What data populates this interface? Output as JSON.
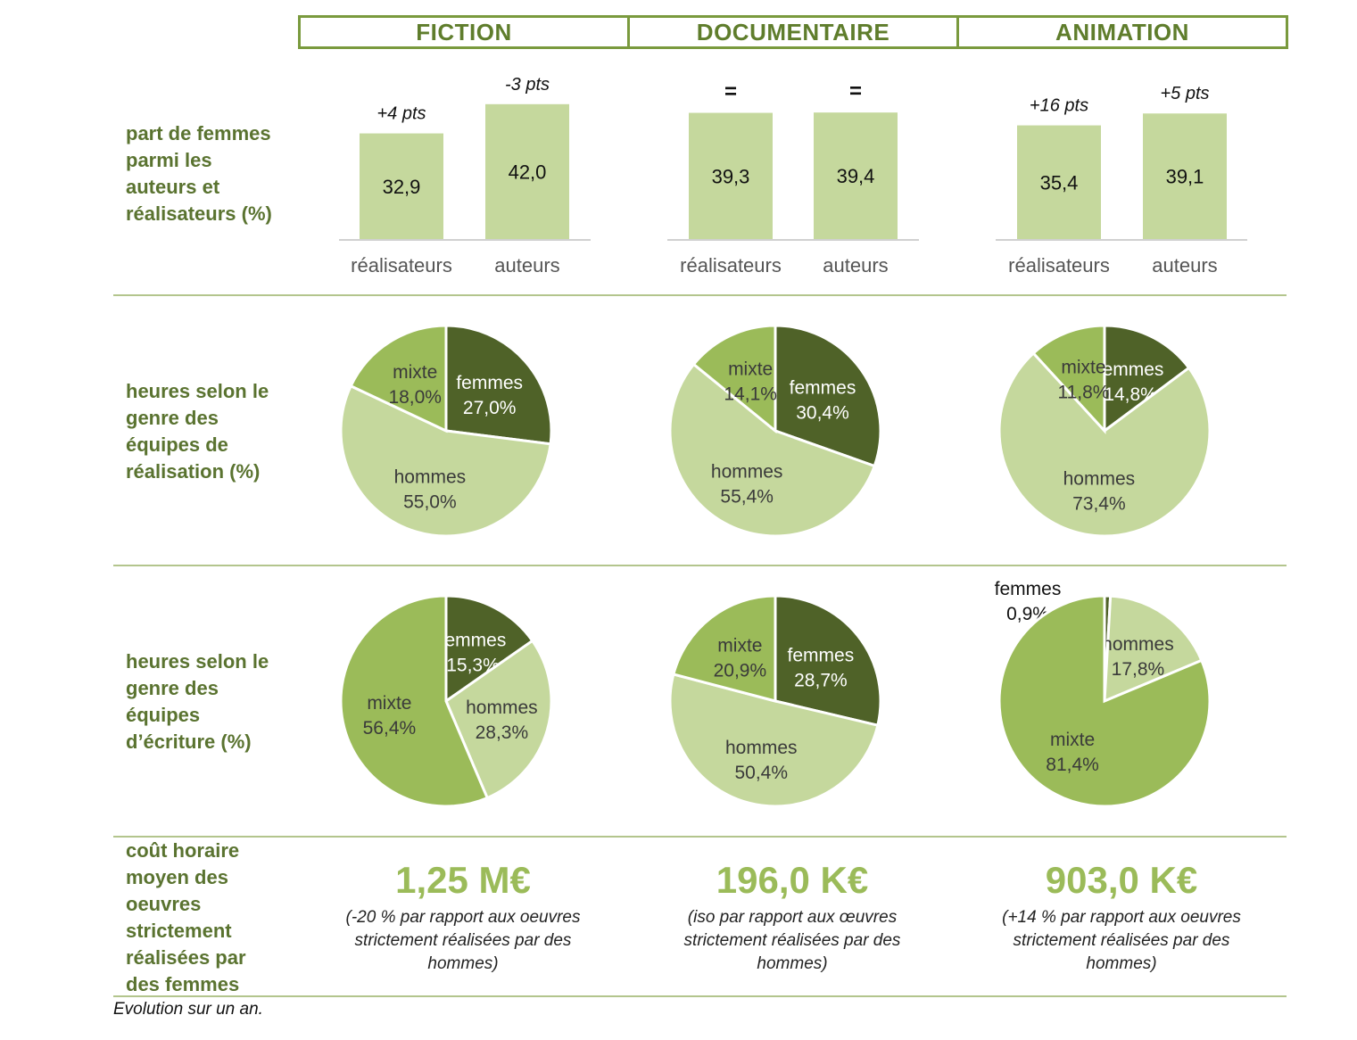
{
  "columns": [
    "FICTION",
    "DOCUMENTAIRE",
    "ANIMATION"
  ],
  "row_labels": {
    "bars": "part de femmes\nparmi les\nauteurs et\nréalisateurs (%)",
    "realisation": "heures selon le\ngenre des\néquipes de\nréalisation (%)",
    "ecriture": "heures selon le\ngenre des\néquipes\nd’écriture (%)",
    "cost": "coût horaire\nmoyen des\noeuvres\nstrictement\nréalisées par\ndes femmes"
  },
  "colors": {
    "header_border": "#7a9a3e",
    "bar": "#c5d89d",
    "femmes": "#4f6228",
    "mixte": "#9bbb59",
    "hommes": "#c5d89d",
    "label_green": "#5a7330",
    "cost_green": "#9bbb59"
  },
  "chart_data": [
    {
      "type": "bar",
      "title": "FICTION",
      "categories": [
        "réalisateurs",
        "auteurs"
      ],
      "values": [
        32.9,
        42.0
      ],
      "value_labels": [
        "32,9",
        "42,0"
      ],
      "evolution": [
        "+4 pts",
        "-3 pts"
      ],
      "ylim": [
        0,
        50
      ]
    },
    {
      "type": "bar",
      "title": "DOCUMENTAIRE",
      "categories": [
        "réalisateurs",
        "auteurs"
      ],
      "values": [
        39.3,
        39.4
      ],
      "value_labels": [
        "39,3",
        "39,4"
      ],
      "evolution": [
        "=",
        "="
      ],
      "ylim": [
        0,
        50
      ]
    },
    {
      "type": "bar",
      "title": "ANIMATION",
      "categories": [
        "réalisateurs",
        "auteurs"
      ],
      "values": [
        35.4,
        39.1
      ],
      "value_labels": [
        "35,4",
        "39,1"
      ],
      "evolution": [
        "+16 pts",
        "+5 pts"
      ],
      "ylim": [
        0,
        50
      ]
    },
    {
      "type": "pie",
      "title": "FICTION",
      "labels": [
        "femmes",
        "hommes",
        "mixte"
      ],
      "values": [
        27.0,
        55.0,
        18.0
      ],
      "value_labels": [
        "27,0%",
        "55,0%",
        "18,0%"
      ]
    },
    {
      "type": "pie",
      "title": "DOCUMENTAIRE",
      "labels": [
        "femmes",
        "hommes",
        "mixte"
      ],
      "values": [
        30.4,
        55.4,
        14.1
      ],
      "value_labels": [
        "30,4%",
        "55,4%",
        "14,1%"
      ]
    },
    {
      "type": "pie",
      "title": "ANIMATION",
      "labels": [
        "femmes",
        "hommes",
        "mixte"
      ],
      "values": [
        14.8,
        73.4,
        11.8
      ],
      "value_labels": [
        "14,8%",
        "73,4%",
        "11,8%"
      ]
    },
    {
      "type": "pie",
      "title": "FICTION",
      "labels": [
        "femmes",
        "hommes",
        "mixte"
      ],
      "values": [
        15.3,
        28.3,
        56.4
      ],
      "value_labels": [
        "15,3%",
        "28,3%",
        "56,4%"
      ]
    },
    {
      "type": "pie",
      "title": "DOCUMENTAIRE",
      "labels": [
        "femmes",
        "hommes",
        "mixte"
      ],
      "values": [
        28.7,
        50.4,
        20.9
      ],
      "value_labels": [
        "28,7%",
        "50,4%",
        "20,9%"
      ]
    },
    {
      "type": "pie",
      "title": "ANIMATION",
      "labels": [
        "femmes",
        "hommes",
        "mixte"
      ],
      "values": [
        0.9,
        17.8,
        81.4
      ],
      "value_labels": [
        "0,9%",
        "17,8%",
        "81,4%"
      ]
    }
  ],
  "cost": [
    {
      "value": "1,25 M€",
      "note": "(-20 % par rapport aux oeuvres\nstrictement réalisées par des\nhommes)"
    },
    {
      "value": "196,0 K€",
      "note": "(iso par rapport aux œuvres\nstrictement réalisées par des\nhommes)"
    },
    {
      "value": "903,0 K€",
      "note": "(+14 % par rapport aux oeuvres\nstrictement réalisées par des\nhommes)"
    }
  ],
  "footnote": "Evolution sur un an."
}
